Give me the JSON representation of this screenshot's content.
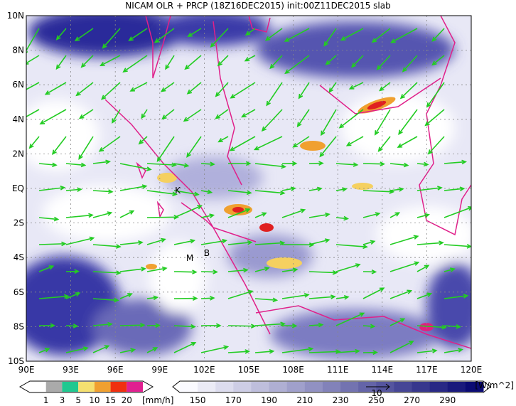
{
  "title": "NICAM OLR + PRCP (18Z16DEC2015) init:00Z11DEC2015 slab",
  "map": {
    "lat_labels": [
      "10N",
      "8N",
      "6N",
      "4N",
      "2N",
      "EQ",
      "2S",
      "4S",
      "6S",
      "8S",
      "10S"
    ],
    "lon_labels": [
      "90E",
      "93E",
      "96E",
      "99E",
      "102E",
      "105E",
      "108E",
      "111E",
      "114E",
      "117E",
      "120E"
    ],
    "place_labels": [
      "K",
      "M",
      "B"
    ]
  },
  "precip_legend": {
    "labels": [
      "1",
      "3",
      "5",
      "10",
      "15",
      "20"
    ],
    "unit": "[mm/h]"
  },
  "olr_legend": {
    "labels": [
      "150",
      "170",
      "190",
      "210",
      "230",
      "250",
      "270",
      "290"
    ],
    "unit": "[W/m^2]"
  },
  "vector_reference": "10"
}
